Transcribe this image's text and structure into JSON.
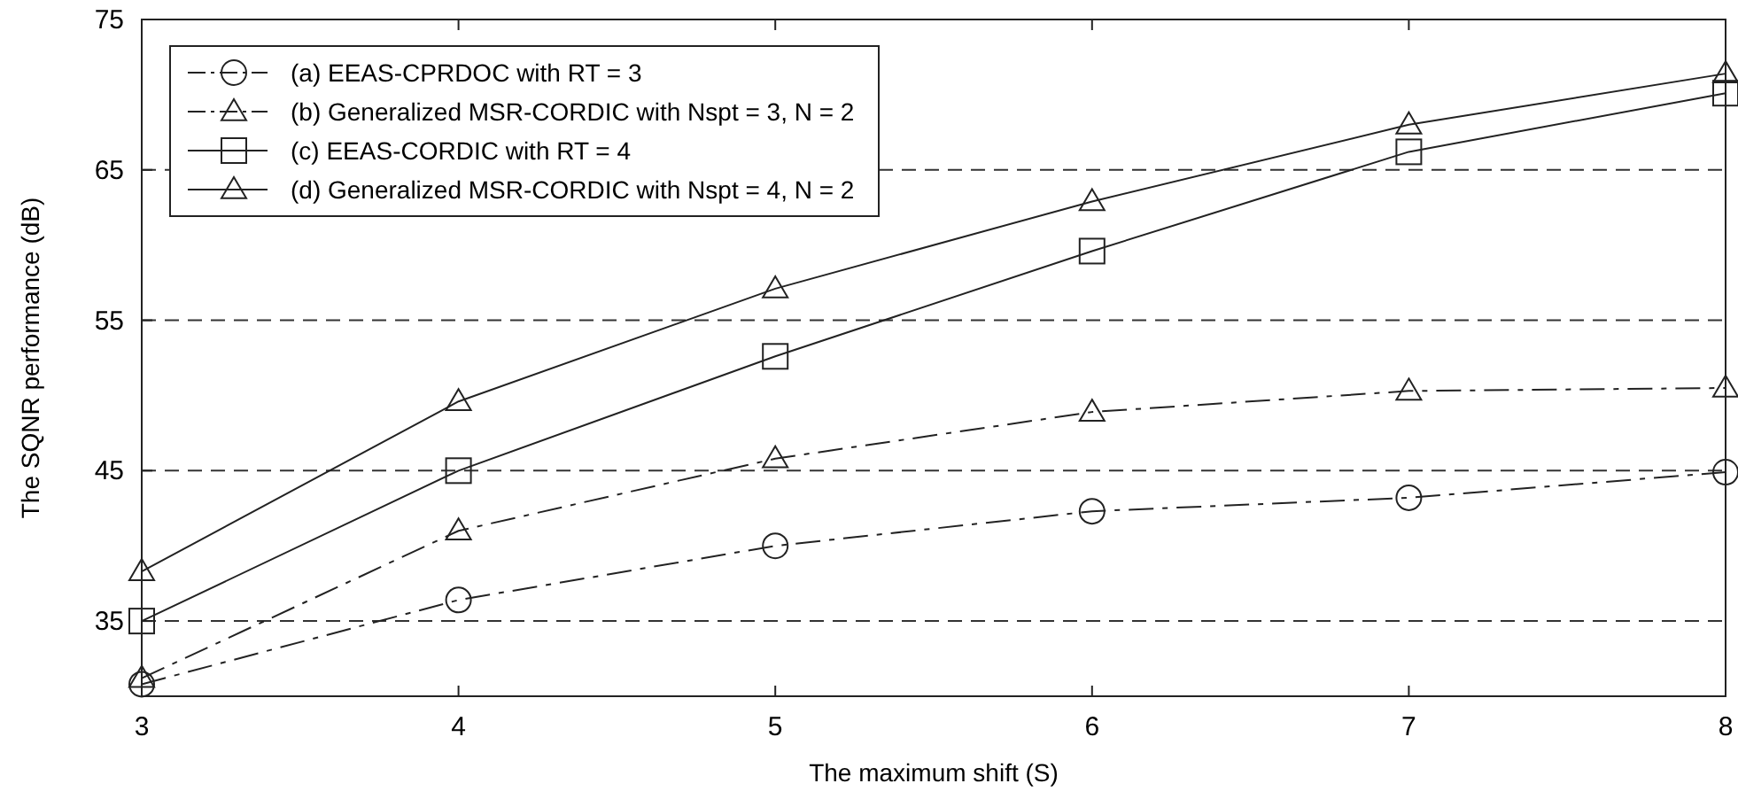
{
  "chart_data": {
    "type": "line",
    "xlabel": "The maximum shift (S)",
    "ylabel": "The SQNR performance (dB)",
    "x": [
      3,
      4,
      5,
      6,
      7,
      8
    ],
    "xlim": [
      3,
      8
    ],
    "xticks": [
      3,
      4,
      5,
      6,
      7,
      8
    ],
    "ylim": [
      30,
      75
    ],
    "yticks": [
      35,
      45,
      55,
      65,
      75
    ],
    "grid": "y",
    "legend": "top left",
    "series": [
      {
        "name": "(a) EEAS-CPRDOC with RT = 3",
        "color": "#222222",
        "marker": "circle",
        "line_style": "dashed",
        "values": [
          30.8,
          36.4,
          40.0,
          42.3,
          43.2,
          44.9
        ]
      },
      {
        "name": "(b) Generalized MSR-CORDIC with Nspt = 3, N = 2",
        "color": "#222222",
        "marker": "triangle",
        "line_style": "dashed",
        "values": [
          31.2,
          41.0,
          45.8,
          48.9,
          50.3,
          50.5
        ]
      },
      {
        "name": "(c) EEAS-CORDIC with RT = 4",
        "color": "#222222",
        "marker": "square",
        "line_style": "solid",
        "values": [
          35.0,
          45.0,
          52.6,
          59.6,
          66.2,
          70.1
        ]
      },
      {
        "name": "(d) Generalized MSR-CORDIC with Nspt = 4, N = 2",
        "color": "#222222",
        "marker": "triangle",
        "line_style": "solid",
        "values": [
          38.3,
          49.6,
          57.1,
          62.9,
          68.0,
          71.4
        ]
      }
    ]
  }
}
